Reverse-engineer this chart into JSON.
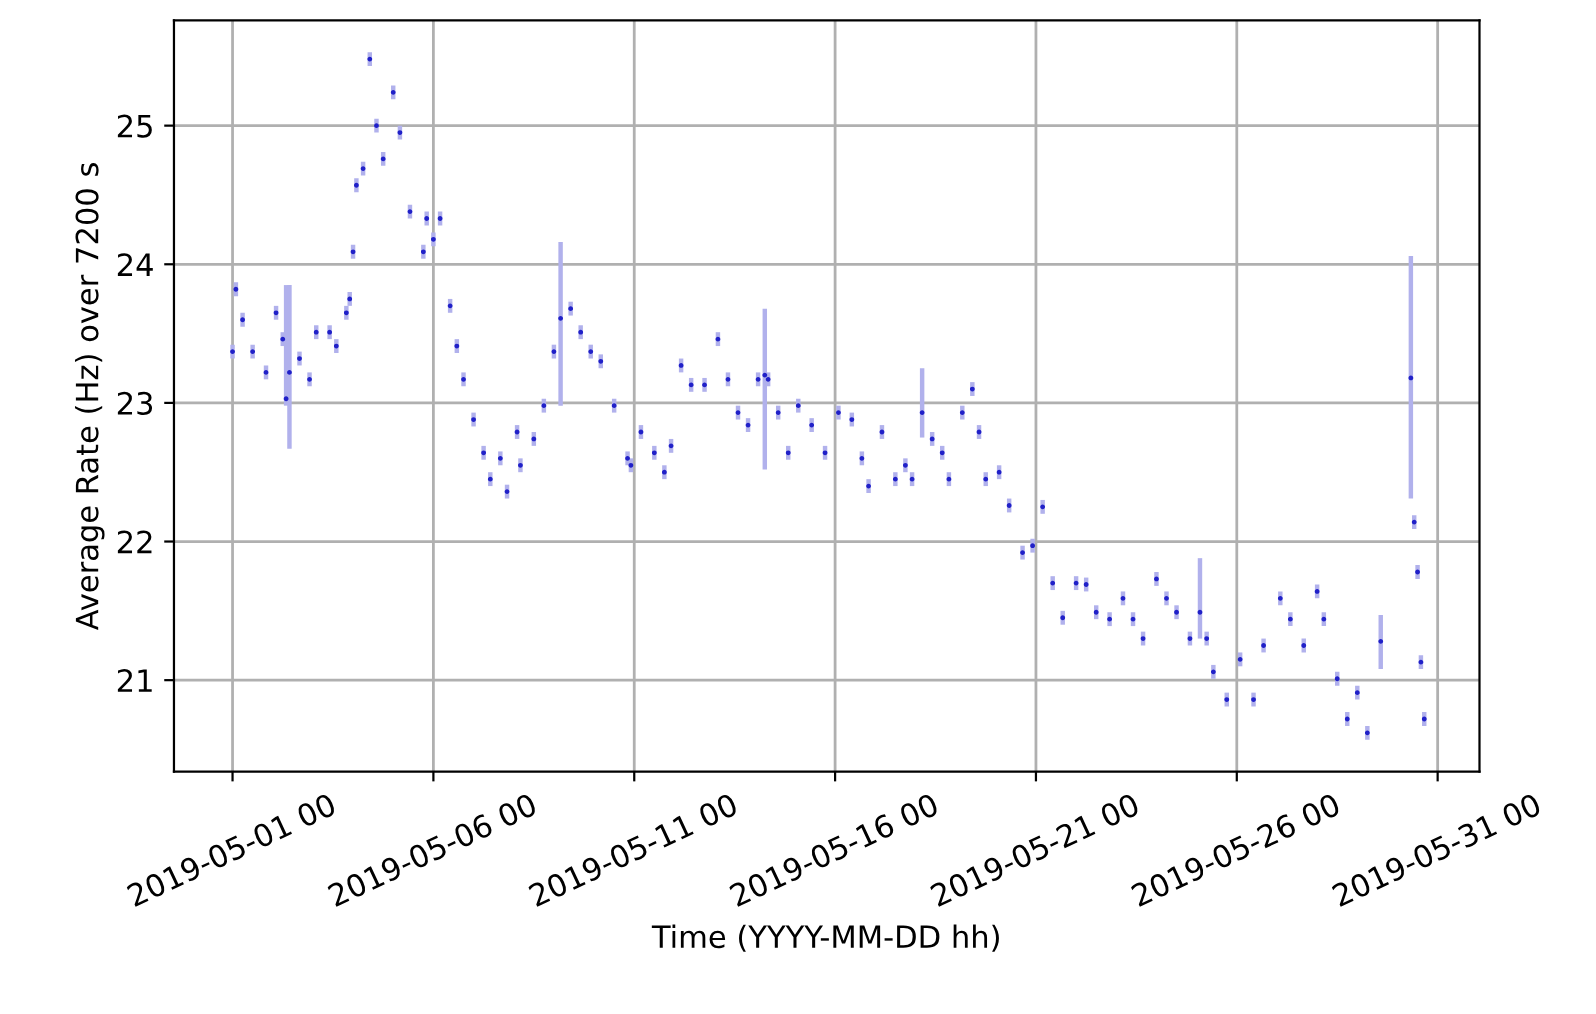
{
  "chart_data": {
    "type": "scatter",
    "xlabel": "Time (YYYY-MM-DD hh)",
    "ylabel": "Average Rate (Hz) over 7200 s",
    "xlim": [
      "2019-04-29T13:00",
      "2019-06-01T01:00"
    ],
    "xticks": [
      {
        "value": "2019-05-01",
        "label": "2019-05-01 00"
      },
      {
        "value": "2019-05-06",
        "label": "2019-05-06 00"
      },
      {
        "value": "2019-05-11",
        "label": "2019-05-11 00"
      },
      {
        "value": "2019-05-16",
        "label": "2019-05-16 00"
      },
      {
        "value": "2019-05-21",
        "label": "2019-05-21 00"
      },
      {
        "value": "2019-05-26",
        "label": "2019-05-26 00"
      },
      {
        "value": "2019-05-31",
        "label": "2019-05-31 00"
      }
    ],
    "ylim": [
      20.34,
      25.76
    ],
    "yticks": [
      21,
      22,
      23,
      24,
      25
    ],
    "grid": true,
    "marker": "circle",
    "series": [
      {
        "color": "#2020c8",
        "x": [
          "2019-05-01T00:00",
          "2019-05-01T02:00",
          "2019-05-01T06:00",
          "2019-05-01T12:00",
          "2019-05-01T20:00",
          "2019-05-02T02:00",
          "2019-05-02T06:00",
          "2019-05-02T08:00",
          "2019-05-02T10:00",
          "2019-05-02T16:00",
          "2019-05-02T22:00",
          "2019-05-03T02:00",
          "2019-05-03T10:00",
          "2019-05-03T14:00",
          "2019-05-03T20:00",
          "2019-05-03T22:00",
          "2019-05-04T00:00",
          "2019-05-04T02:00",
          "2019-05-04T06:00",
          "2019-05-04T10:00",
          "2019-05-04T14:00",
          "2019-05-04T18:00",
          "2019-05-05T00:00",
          "2019-05-05T04:00",
          "2019-05-05T10:00",
          "2019-05-05T18:00",
          "2019-05-05T20:00",
          "2019-05-06T00:00",
          "2019-05-06T04:00",
          "2019-05-06T10:00",
          "2019-05-06T14:00",
          "2019-05-06T18:00",
          "2019-05-07T00:00",
          "2019-05-07T06:00",
          "2019-05-07T10:00",
          "2019-05-07T16:00",
          "2019-05-07T20:00",
          "2019-05-08T02:00",
          "2019-05-08T04:00",
          "2019-05-08T12:00",
          "2019-05-08T18:00",
          "2019-05-09T00:00",
          "2019-05-09T04:00",
          "2019-05-09T10:00",
          "2019-05-09T16:00",
          "2019-05-09T22:00",
          "2019-05-10T04:00",
          "2019-05-10T12:00",
          "2019-05-10T20:00",
          "2019-05-10T22:00",
          "2019-05-11T04:00",
          "2019-05-11T12:00",
          "2019-05-11T18:00",
          "2019-05-11T22:00",
          "2019-05-12T04:00",
          "2019-05-12T10:00",
          "2019-05-12T18:00",
          "2019-05-13T02:00",
          "2019-05-13T08:00",
          "2019-05-13T14:00",
          "2019-05-13T20:00",
          "2019-05-14T02:00",
          "2019-05-14T06:00",
          "2019-05-14T08:00",
          "2019-05-14T14:00",
          "2019-05-14T20:00",
          "2019-05-15T02:00",
          "2019-05-15T10:00",
          "2019-05-15T18:00",
          "2019-05-16T02:00",
          "2019-05-16T10:00",
          "2019-05-16T16:00",
          "2019-05-16T20:00",
          "2019-05-17T04:00",
          "2019-05-17T12:00",
          "2019-05-17T18:00",
          "2019-05-17T22:00",
          "2019-05-18T04:00",
          "2019-05-18T10:00",
          "2019-05-18T16:00",
          "2019-05-18T20:00",
          "2019-05-19T04:00",
          "2019-05-19T10:00",
          "2019-05-19T14:00",
          "2019-05-19T18:00",
          "2019-05-20T02:00",
          "2019-05-20T08:00",
          "2019-05-20T16:00",
          "2019-05-20T22:00",
          "2019-05-21T04:00",
          "2019-05-21T10:00",
          "2019-05-21T16:00",
          "2019-05-22T00:00",
          "2019-05-22T06:00",
          "2019-05-22T12:00",
          "2019-05-22T20:00",
          "2019-05-23T04:00",
          "2019-05-23T10:00",
          "2019-05-23T16:00",
          "2019-05-24T00:00",
          "2019-05-24T06:00",
          "2019-05-24T12:00",
          "2019-05-24T20:00",
          "2019-05-25T02:00",
          "2019-05-25T06:00",
          "2019-05-25T10:00",
          "2019-05-25T18:00",
          "2019-05-26T02:00",
          "2019-05-26T10:00",
          "2019-05-26T16:00",
          "2019-05-27T02:00",
          "2019-05-27T08:00",
          "2019-05-27T16:00",
          "2019-05-28T00:00",
          "2019-05-28T04:00",
          "2019-05-28T12:00",
          "2019-05-28T18:00",
          "2019-05-29T00:00",
          "2019-05-29T06:00",
          "2019-05-29T14:00",
          "2019-05-30T08:00",
          "2019-05-30T10:00",
          "2019-05-30T12:00",
          "2019-05-30T14:00",
          "2019-05-30T16:00"
        ],
        "values": [
          23.37,
          23.82,
          23.6,
          23.37,
          23.22,
          23.65,
          23.46,
          23.03,
          23.22,
          23.32,
          23.17,
          23.51,
          23.51,
          23.41,
          23.65,
          23.75,
          24.09,
          24.57,
          24.69,
          25.48,
          25.0,
          24.76,
          25.24,
          24.95,
          24.38,
          24.09,
          24.33,
          24.18,
          24.33,
          23.7,
          23.41,
          23.17,
          22.88,
          22.64,
          22.45,
          22.6,
          22.36,
          22.79,
          22.55,
          22.74,
          22.98,
          23.37,
          23.61,
          23.68,
          23.51,
          23.37,
          23.3,
          22.98,
          22.6,
          22.55,
          22.79,
          22.64,
          22.5,
          22.69,
          23.27,
          23.13,
          23.13,
          23.46,
          23.17,
          22.93,
          22.84,
          23.17,
          23.2,
          23.17,
          22.93,
          22.64,
          22.98,
          22.84,
          22.64,
          22.93,
          22.88,
          22.6,
          22.4,
          22.79,
          22.45,
          22.55,
          22.45,
          22.93,
          22.74,
          22.64,
          22.45,
          22.93,
          23.1,
          22.79,
          22.45,
          22.5,
          22.26,
          21.92,
          21.97,
          22.25,
          21.7,
          21.45,
          21.7,
          21.69,
          21.49,
          21.44,
          21.59,
          21.44,
          21.3,
          21.73,
          21.59,
          21.49,
          21.3,
          21.49,
          21.3,
          21.06,
          20.86,
          21.15,
          20.86,
          21.25,
          21.59,
          21.44,
          21.25,
          21.64,
          21.44,
          21.01,
          20.72,
          20.91,
          20.62,
          21.28,
          23.18,
          22.14,
          21.78,
          21.13,
          20.72
        ],
        "errors": [
          0.05,
          0.05,
          0.05,
          0.05,
          0.05,
          0.05,
          0.05,
          [
            22.98,
            23.85
          ],
          [
            22.67,
            23.85
          ],
          0.05,
          0.05,
          0.05,
          0.05,
          0.05,
          0.05,
          0.05,
          0.05,
          0.05,
          0.05,
          0.05,
          0.05,
          0.05,
          0.05,
          0.05,
          0.05,
          0.05,
          0.05,
          0.05,
          0.05,
          0.05,
          0.05,
          0.05,
          0.05,
          0.05,
          0.05,
          0.05,
          0.05,
          0.05,
          0.05,
          0.05,
          0.05,
          0.05,
          [
            22.98,
            24.16
          ],
          0.05,
          0.05,
          0.05,
          0.05,
          0.05,
          0.05,
          0.05,
          0.05,
          0.05,
          0.05,
          0.05,
          0.05,
          0.05,
          0.05,
          0.05,
          0.05,
          0.05,
          0.05,
          0.05,
          [
            22.52,
            23.68
          ],
          0.05,
          0.05,
          0.05,
          0.05,
          0.05,
          0.05,
          0.05,
          0.05,
          0.05,
          0.05,
          0.05,
          0.05,
          0.05,
          0.05,
          [
            22.75,
            23.25
          ],
          0.05,
          0.05,
          0.05,
          0.05,
          0.05,
          0.05,
          0.05,
          0.05,
          0.05,
          0.05,
          0.05,
          0.05,
          0.05,
          0.05,
          0.05,
          0.05,
          0.05,
          0.05,
          0.05,
          0.05,
          0.05,
          0.05,
          0.05,
          0.05,
          0.05,
          [
            21.3,
            21.88
          ],
          0.05,
          0.05,
          0.05,
          0.05,
          0.05,
          0.05,
          0.05,
          0.05,
          0.05,
          0.05,
          0.05,
          0.05,
          0.05,
          0.05,
          0.05,
          [
            21.08,
            21.47
          ],
          [
            22.31,
            24.06
          ],
          0.05,
          0.05,
          0.05,
          0.05
        ]
      }
    ]
  }
}
